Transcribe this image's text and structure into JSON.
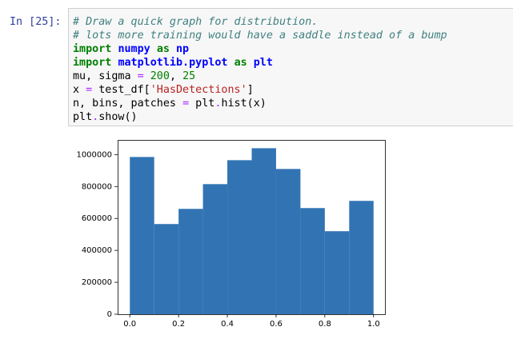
{
  "cell": {
    "prompt": "In [25]:",
    "lines": [
      [
        {
          "t": "# Draw a quick graph for distribution.",
          "k": "comment"
        }
      ],
      [
        {
          "t": "# lots more training would have a saddle instead of a bump",
          "k": "comment"
        }
      ],
      [
        {
          "t": "import",
          "k": "kw"
        },
        {
          "t": " ",
          "k": "plain"
        },
        {
          "t": "numpy",
          "k": "ns"
        },
        {
          "t": " ",
          "k": "plain"
        },
        {
          "t": "as",
          "k": "kw"
        },
        {
          "t": " ",
          "k": "plain"
        },
        {
          "t": "np",
          "k": "ns"
        }
      ],
      [
        {
          "t": "import",
          "k": "kw"
        },
        {
          "t": " ",
          "k": "plain"
        },
        {
          "t": "matplotlib.pyplot",
          "k": "ns"
        },
        {
          "t": " ",
          "k": "plain"
        },
        {
          "t": "as",
          "k": "kw"
        },
        {
          "t": " ",
          "k": "plain"
        },
        {
          "t": "plt",
          "k": "ns"
        }
      ],
      [
        {
          "t": "mu, sigma ",
          "k": "plain"
        },
        {
          "t": "=",
          "k": "op"
        },
        {
          "t": " ",
          "k": "plain"
        },
        {
          "t": "200",
          "k": "num"
        },
        {
          "t": ", ",
          "k": "plain"
        },
        {
          "t": "25",
          "k": "num"
        }
      ],
      [
        {
          "t": "x ",
          "k": "plain"
        },
        {
          "t": "=",
          "k": "op"
        },
        {
          "t": " test_df[",
          "k": "plain"
        },
        {
          "t": "'HasDetections'",
          "k": "str"
        },
        {
          "t": "]",
          "k": "plain"
        }
      ],
      [
        {
          "t": "n, bins, patches ",
          "k": "plain"
        },
        {
          "t": "=",
          "k": "op"
        },
        {
          "t": " plt",
          "k": "plain"
        },
        {
          "t": ".",
          "k": "op"
        },
        {
          "t": "hist(x)",
          "k": "plain"
        }
      ],
      [
        {
          "t": "plt",
          "k": "plain"
        },
        {
          "t": ".",
          "k": "op"
        },
        {
          "t": "show()",
          "k": "plain"
        }
      ]
    ]
  },
  "chart_data": {
    "type": "histogram",
    "bins": [
      0.0,
      0.1,
      0.2,
      0.3,
      0.4,
      0.5,
      0.6,
      0.7,
      0.8,
      0.9,
      1.0
    ],
    "values": [
      985000,
      565000,
      660000,
      815000,
      965000,
      1040000,
      910000,
      665000,
      520000,
      710000
    ],
    "color": "#3274b3",
    "xlim": [
      -0.05,
      1.05
    ],
    "xticks": [
      {
        "value": 0,
        "label": "0.0"
      },
      {
        "value": 0.2,
        "label": "0.2"
      },
      {
        "value": 0.4,
        "label": "0.4"
      },
      {
        "value": 0.6,
        "label": "0.6"
      },
      {
        "value": 0.8,
        "label": "0.8"
      },
      {
        "value": 1,
        "label": "1.0"
      }
    ],
    "ylim": [
      0,
      1092000
    ],
    "yticks": [
      0,
      200000,
      400000,
      600000,
      800000,
      1000000
    ]
  }
}
